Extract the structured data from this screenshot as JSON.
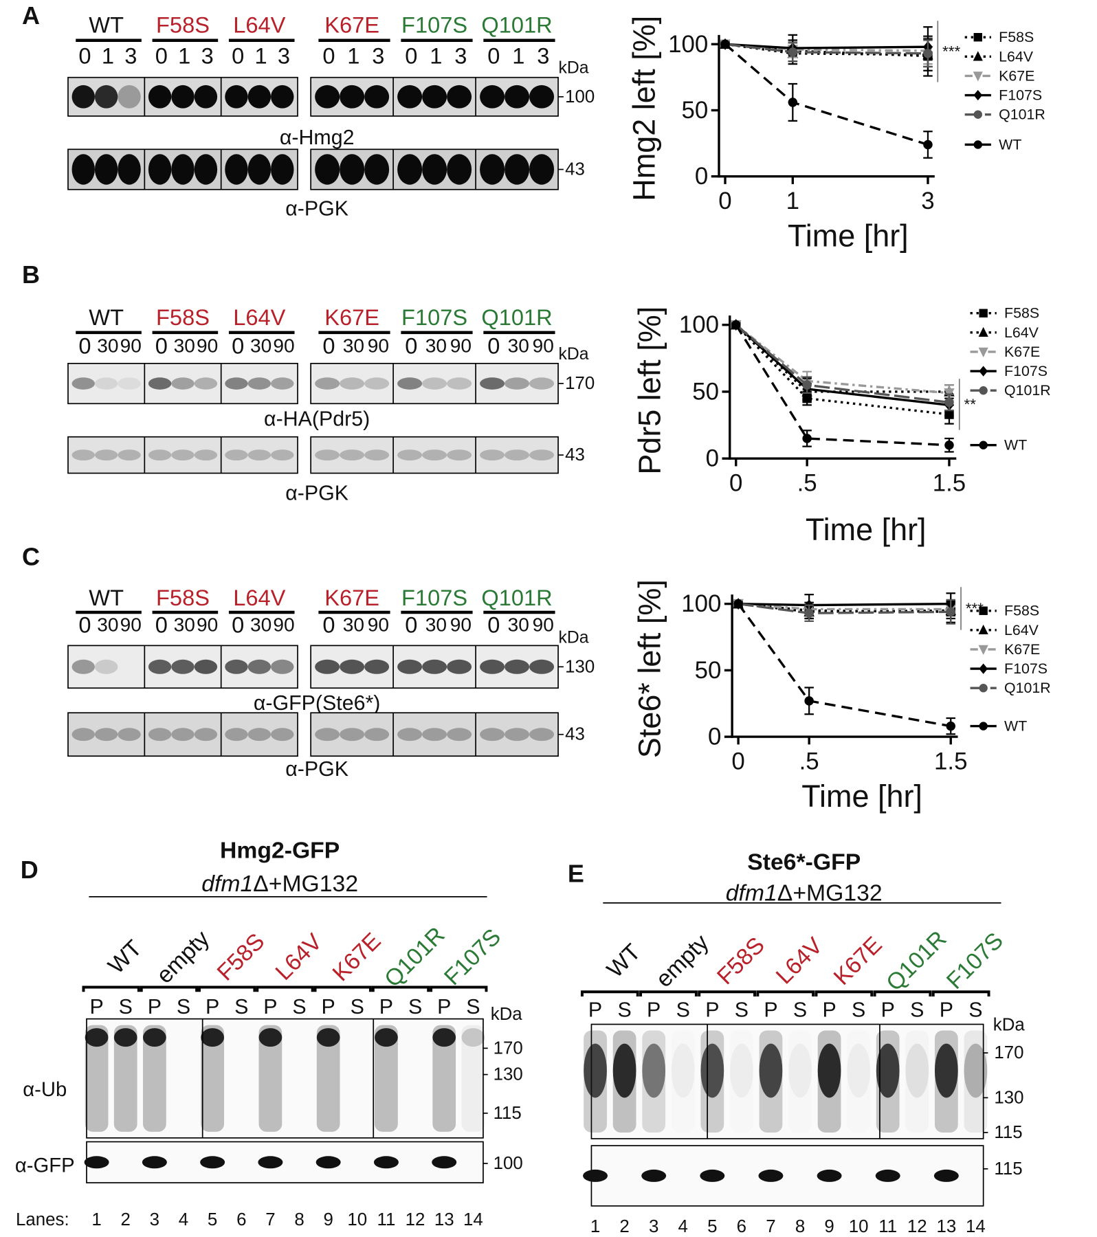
{
  "chart_data": [
    {
      "type": "line",
      "y_label": "Hmg2 left [%]",
      "x_label": "Time [hr]",
      "x": [
        0,
        1,
        3
      ],
      "xlim": [
        0,
        3.1
      ],
      "xticks": [
        0,
        1,
        3
      ],
      "ylim": [
        0,
        107
      ],
      "yticks": [
        0,
        50,
        100
      ],
      "annotation": "***",
      "legend": "right",
      "series": [
        {
          "name": "F58S",
          "color": "#000000",
          "line_style": "dotted",
          "marker": "square",
          "values": [
            100,
            95,
            91
          ],
          "errors": [
            0,
            8,
            15
          ]
        },
        {
          "name": "L64V",
          "color": "#000000",
          "line_style": "dotted",
          "marker": "triangle",
          "values": [
            100,
            93,
            92
          ],
          "errors": [
            0,
            8,
            12
          ]
        },
        {
          "name": "K67E",
          "color": "#999999",
          "line_style": "dashdot",
          "marker": "triangle-down",
          "values": [
            100,
            96,
            95
          ],
          "errors": [
            0,
            6,
            10
          ]
        },
        {
          "name": "F107S",
          "color": "#000000",
          "line_style": "solid",
          "marker": "diamond",
          "values": [
            100,
            97,
            98
          ],
          "errors": [
            0,
            10,
            15
          ]
        },
        {
          "name": "Q101R",
          "color": "#555555",
          "line_style": "longdash",
          "marker": "circle",
          "values": [
            100,
            94,
            93
          ],
          "errors": [
            0,
            7,
            10
          ]
        },
        {
          "name": "WT",
          "color": "#000000",
          "line_style": "dashed",
          "marker": "circle",
          "values": [
            100,
            56,
            24
          ],
          "errors": [
            0,
            14,
            10
          ]
        }
      ]
    },
    {
      "type": "line",
      "y_label": "Pdr5 left [%]",
      "x_label": "Time [hr]",
      "x": [
        0,
        0.5,
        1.5
      ],
      "xlim": [
        0,
        1.55
      ],
      "xticks": [
        0,
        {
          "value": 0.5,
          "label": ".5"
        },
        1.5
      ],
      "ylim": [
        0,
        107
      ],
      "yticks": [
        0,
        50,
        100
      ],
      "annotation": "**",
      "legend": "right",
      "series": [
        {
          "name": "F58S",
          "color": "#000000",
          "line_style": "dotted",
          "marker": "square",
          "values": [
            100,
            45,
            33
          ],
          "errors": [
            0,
            5,
            7
          ]
        },
        {
          "name": "L64V",
          "color": "#000000",
          "line_style": "dotted",
          "marker": "triangle",
          "values": [
            100,
            50,
            50
          ],
          "errors": [
            0,
            6,
            5
          ]
        },
        {
          "name": "K67E",
          "color": "#999999",
          "line_style": "dashdot",
          "marker": "triangle-down",
          "values": [
            100,
            58,
            49
          ],
          "errors": [
            0,
            7,
            6
          ]
        },
        {
          "name": "F107S",
          "color": "#000000",
          "line_style": "solid",
          "marker": "diamond",
          "values": [
            100,
            52,
            40
          ],
          "errors": [
            0,
            8,
            8
          ]
        },
        {
          "name": "Q101R",
          "color": "#555555",
          "line_style": "longdash",
          "marker": "circle",
          "values": [
            100,
            55,
            42
          ],
          "errors": [
            0,
            6,
            6
          ]
        },
        {
          "name": "WT",
          "color": "#000000",
          "line_style": "dashed",
          "marker": "circle",
          "values": [
            100,
            15,
            10
          ],
          "errors": [
            0,
            6,
            5
          ]
        }
      ]
    },
    {
      "type": "line",
      "y_label": "Ste6* left [%]",
      "x_label": "Time [hr]",
      "x": [
        0,
        0.5,
        1.5
      ],
      "xlim": [
        0,
        1.55
      ],
      "xticks": [
        0,
        {
          "value": 0.5,
          "label": ".5"
        },
        1.5
      ],
      "ylim": [
        0,
        107
      ],
      "yticks": [
        0,
        50,
        100
      ],
      "annotation": "***",
      "legend": "right",
      "series": [
        {
          "name": "F58S",
          "color": "#000000",
          "line_style": "dotted",
          "marker": "square",
          "values": [
            100,
            95,
            94
          ],
          "errors": [
            0,
            6,
            8
          ]
        },
        {
          "name": "L64V",
          "color": "#000000",
          "line_style": "dotted",
          "marker": "triangle",
          "values": [
            100,
            94,
            95
          ],
          "errors": [
            0,
            5,
            6
          ]
        },
        {
          "name": "K67E",
          "color": "#999999",
          "line_style": "dashdot",
          "marker": "triangle-down",
          "values": [
            100,
            96,
            96
          ],
          "errors": [
            0,
            4,
            4
          ]
        },
        {
          "name": "F107S",
          "color": "#000000",
          "line_style": "solid",
          "marker": "diamond",
          "values": [
            100,
            99,
            100
          ],
          "errors": [
            0,
            8,
            8
          ]
        },
        {
          "name": "Q101R",
          "color": "#555555",
          "line_style": "longdash",
          "marker": "circle",
          "values": [
            100,
            93,
            94
          ],
          "errors": [
            0,
            6,
            9
          ]
        },
        {
          "name": "WT",
          "color": "#000000",
          "line_style": "dashed",
          "marker": "circle",
          "values": [
            100,
            27,
            8
          ],
          "errors": [
            0,
            10,
            6
          ]
        }
      ]
    }
  ],
  "blot_panels": [
    {
      "letter": "A",
      "strains": [
        {
          "name": "WT",
          "color": "#111111"
        },
        {
          "name": "F58S",
          "color": "#b8202a"
        },
        {
          "name": "L64V",
          "color": "#b8202a"
        },
        {
          "name": "K67E",
          "color": "#b8202a"
        },
        {
          "name": "F107S",
          "color": "#2a7a36"
        },
        {
          "name": "Q101R",
          "color": "#2a7a36"
        }
      ],
      "timepoints": [
        "0",
        "1",
        "3"
      ],
      "kda": "kDa",
      "blots": [
        {
          "antibody": "α-Hmg2",
          "marker": 100
        },
        {
          "antibody": "α-PGK",
          "marker": 43
        }
      ]
    },
    {
      "letter": "B",
      "strains": [
        {
          "name": "WT",
          "color": "#111111"
        },
        {
          "name": "F58S",
          "color": "#b8202a"
        },
        {
          "name": "L64V",
          "color": "#b8202a"
        },
        {
          "name": "K67E",
          "color": "#b8202a"
        },
        {
          "name": "F107S",
          "color": "#2a7a36"
        },
        {
          "name": "Q101R",
          "color": "#2a7a36"
        }
      ],
      "timepoints": [
        "0",
        "30",
        "90"
      ],
      "kda": "kDa",
      "blots": [
        {
          "antibody": "α-HA(Pdr5)",
          "marker": 170
        },
        {
          "antibody": "α-PGK",
          "marker": 43
        }
      ]
    },
    {
      "letter": "C",
      "strains": [
        {
          "name": "WT",
          "color": "#111111"
        },
        {
          "name": "F58S",
          "color": "#b8202a"
        },
        {
          "name": "L64V",
          "color": "#b8202a"
        },
        {
          "name": "K67E",
          "color": "#b8202a"
        },
        {
          "name": "F107S",
          "color": "#2a7a36"
        },
        {
          "name": "Q101R",
          "color": "#2a7a36"
        }
      ],
      "timepoints": [
        "0",
        "30",
        "90"
      ],
      "kda": "kDa",
      "blots": [
        {
          "antibody": "α-GFP(Ste6*)",
          "marker": 130
        },
        {
          "antibody": "α-PGK",
          "marker": 43
        }
      ]
    }
  ],
  "fractionation_panels": [
    {
      "letter": "D",
      "construct": "Hmg2-GFP",
      "strain_italic": "dfm1",
      "strain_rest": "Δ+MG132",
      "samples": [
        {
          "name": "WT",
          "color": "#111111"
        },
        {
          "name": "empty",
          "color": "#111111"
        },
        {
          "name": "F58S",
          "color": "#b8202a"
        },
        {
          "name": "L64V",
          "color": "#b8202a"
        },
        {
          "name": "K67E",
          "color": "#b8202a"
        },
        {
          "name": "Q101R",
          "color": "#2a7a36"
        },
        {
          "name": "F107S",
          "color": "#2a7a36"
        }
      ],
      "fractions": [
        "P",
        "S"
      ],
      "kda": "kDa",
      "blots": [
        {
          "antibody": "α-Ub",
          "markers": [
            170,
            130,
            115
          ]
        },
        {
          "antibody": "α-GFP",
          "markers": [
            100
          ]
        }
      ],
      "lanes_label": "Lanes:",
      "lanes": [
        1,
        2,
        3,
        4,
        5,
        6,
        7,
        8,
        9,
        10,
        11,
        12,
        13,
        14
      ]
    },
    {
      "letter": "E",
      "construct": "Ste6*-GFP",
      "strain_italic": "dfm1",
      "strain_rest": "Δ+MG132",
      "samples": [
        {
          "name": "WT",
          "color": "#111111"
        },
        {
          "name": "empty",
          "color": "#111111"
        },
        {
          "name": "F58S",
          "color": "#b8202a"
        },
        {
          "name": "L64V",
          "color": "#b8202a"
        },
        {
          "name": "K67E",
          "color": "#b8202a"
        },
        {
          "name": "Q101R",
          "color": "#2a7a36"
        },
        {
          "name": "F107S",
          "color": "#2a7a36"
        }
      ],
      "fractions": [
        "P",
        "S"
      ],
      "kda": "kDa",
      "blots": [
        {
          "markers": [
            170,
            130,
            115
          ]
        },
        {
          "markers": [
            115
          ]
        }
      ],
      "lanes": [
        1,
        2,
        3,
        4,
        5,
        6,
        7,
        8,
        9,
        10,
        11,
        12,
        13,
        14
      ]
    }
  ]
}
